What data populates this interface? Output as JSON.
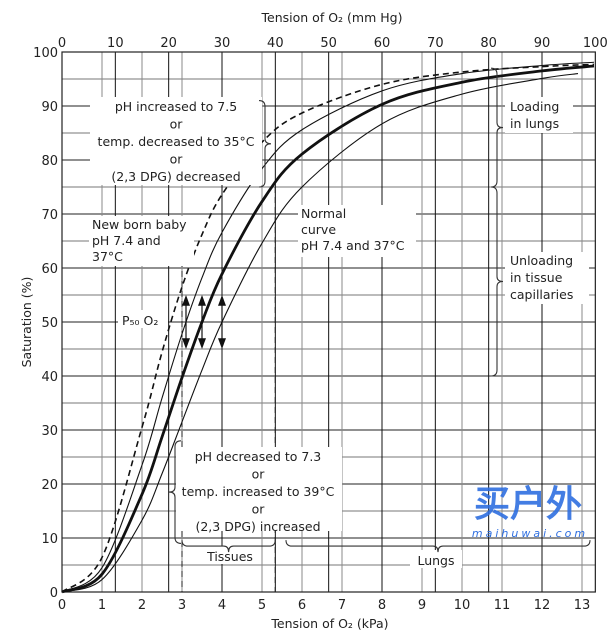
{
  "chart_data": {
    "type": "line",
    "title": "",
    "xlabel": "Tension of O₂ (kPa)",
    "x2label": "Tension of O₂ (mm Hg)",
    "ylabel": "Saturation (%)",
    "xlim": [
      0,
      13.33
    ],
    "x2lim": [
      0,
      100
    ],
    "ylim": [
      0,
      100
    ],
    "grid": true,
    "x_ticks": [
      "0",
      "1",
      "2",
      "3",
      "4",
      "5",
      "6",
      "7",
      "8",
      "9",
      "10",
      "11",
      "12",
      "13"
    ],
    "x2_ticks": [
      "0",
      "10",
      "20",
      "30",
      "40",
      "50",
      "60",
      "70",
      "80",
      "90",
      "100"
    ],
    "y_ticks": [
      "0",
      "10",
      "20",
      "30",
      "40",
      "50",
      "60",
      "70",
      "80",
      "90",
      "100"
    ],
    "series": [
      {
        "style": "dashed",
        "x": [
          0,
          1,
          2,
          2.5,
          3,
          3.5,
          4,
          5,
          6,
          8,
          10,
          12,
          13.3
        ],
        "y": [
          0,
          6.4,
          30.5,
          44.4,
          56.5,
          66.2,
          73.6,
          83.3,
          88.7,
          94,
          96.3,
          97.3,
          97.7
        ]
      },
      {
        "style": "thin",
        "x": [
          0,
          1,
          2,
          2.5,
          3,
          3.5,
          4,
          5,
          6,
          8,
          10,
          12,
          13.3
        ],
        "y": [
          0,
          4.5,
          23.5,
          35.9,
          47.8,
          58.2,
          66.6,
          78.4,
          85.6,
          92.8,
          96,
          97.5,
          98.1
        ]
      },
      {
        "style": "thick",
        "x": [
          0,
          1,
          2,
          2.5,
          3,
          3.5,
          4,
          5,
          6,
          8,
          10,
          12,
          13.3
        ],
        "y": [
          0,
          3.3,
          18.1,
          28.7,
          39.7,
          50,
          58.9,
          72.3,
          81.1,
          90.3,
          94.4,
          96.5,
          97.4
        ]
      },
      {
        "style": "thin",
        "x": [
          0,
          1,
          2,
          2.5,
          3,
          3.5,
          4,
          5,
          6,
          8,
          10,
          12,
          12.9
        ],
        "y": [
          0,
          2.3,
          13.3,
          21.9,
          31.5,
          41.1,
          50,
          64.6,
          75,
          86.7,
          92.2,
          95.1,
          96
        ]
      }
    ],
    "annotations": {
      "left_shift": [
        "pH increased to 7.5",
        "or",
        "temp. decreased to 35°C",
        "or",
        "(2,3 DPG) decreased"
      ],
      "newborn": [
        "New born baby",
        "pH 7.4 and",
        "37°C"
      ],
      "normal": [
        "Normal",
        "curve",
        "pH 7.4 and 37°C"
      ],
      "loading": [
        "Loading",
        "in lungs"
      ],
      "unloading": [
        "Unloading",
        "in tissue",
        "capillaries"
      ],
      "p50": "P₅₀ O₂",
      "right_shift": [
        "pH decreased to 7.3",
        "or",
        "temp. increased to 39°C",
        "or",
        "(2,3 DPG) increased"
      ],
      "tissues": "Tissues",
      "lungs": "Lungs"
    },
    "p50_markers_kpa": [
      3.1,
      3.5,
      4.0
    ],
    "reference_lines_kpa": [
      3,
      5.33
    ]
  },
  "watermark": {
    "main": "买户外",
    "sub": "maihuwai.com",
    "color": "#2f6fe0"
  }
}
